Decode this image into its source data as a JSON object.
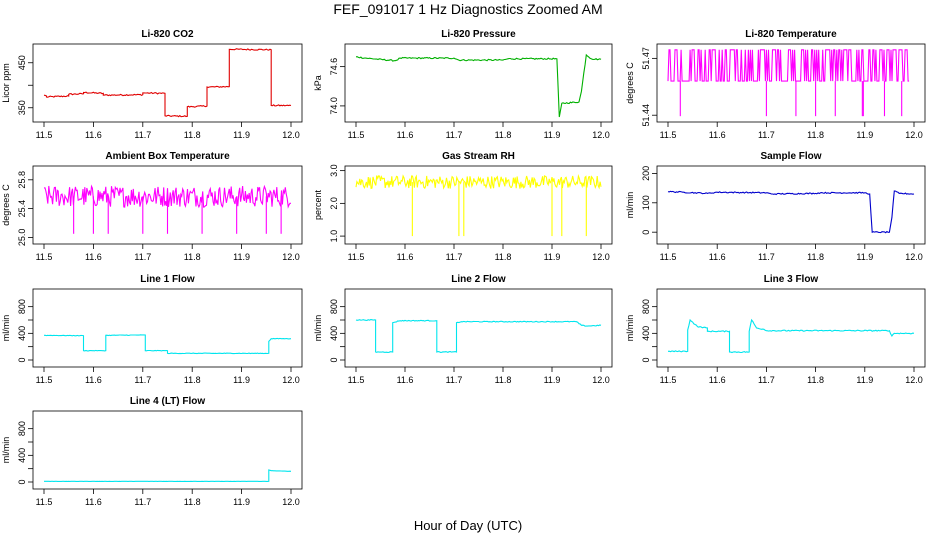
{
  "figure": {
    "title": "FEF_091017  1 Hz Diagnostics Zoomed AM",
    "xlabel": "Hour of Day (UTC)"
  },
  "chart_data": [
    {
      "type": "line",
      "title": "Li-820 CO2",
      "ylabel": "Licor ppm",
      "color": "#e00000",
      "xlim": [
        11.5,
        12.0
      ],
      "xticks": [
        11.5,
        11.6,
        11.7,
        11.8,
        11.9,
        12.0
      ],
      "xtick_labels": [
        "11.5",
        "11.6",
        "11.7",
        "11.8",
        "11.9",
        "12.0"
      ],
      "ylim": [
        325,
        485
      ],
      "yticks": [
        350,
        400,
        450
      ],
      "ytick_labels": [
        "350",
        "",
        "450"
      ],
      "noise": 1.5,
      "spikes": [],
      "series": [
        {
          "x": [
            11.5,
            11.505,
            11.505,
            11.55,
            11.55,
            11.58,
            11.58,
            11.62,
            11.62,
            11.7,
            11.7,
            11.745,
            11.745,
            11.79,
            11.79,
            11.83,
            11.83,
            11.875,
            11.875,
            11.96,
            11.96,
            12.0
          ],
          "y": [
            378,
            376,
            374,
            376,
            380,
            381,
            384,
            382,
            378,
            379,
            383,
            382,
            332,
            331,
            352,
            354,
            396,
            397,
            480,
            479,
            355,
            355
          ]
        }
      ]
    },
    {
      "type": "line",
      "title": "Li-820 Pressure",
      "ylabel": "kPa",
      "color": "#00b000",
      "xlim": [
        11.5,
        12.0
      ],
      "xticks": [
        11.5,
        11.6,
        11.7,
        11.8,
        11.9,
        12.0
      ],
      "xtick_labels": [
        "11.5",
        "11.6",
        "11.7",
        "11.8",
        "11.9",
        "12.0"
      ],
      "ylim": [
        73.8,
        74.9
      ],
      "yticks": [
        74.0,
        74.6
      ],
      "ytick_labels": [
        "74.0",
        "74.6"
      ],
      "noise": 0.01,
      "spikes": [],
      "series": [
        {
          "x": [
            11.5,
            11.52,
            11.58,
            11.59,
            11.7,
            11.71,
            11.8,
            11.81,
            11.91,
            11.915,
            11.92,
            11.955,
            11.96,
            11.97,
            11.98,
            12.0
          ],
          "y": [
            74.75,
            74.73,
            74.69,
            74.73,
            74.73,
            74.7,
            74.7,
            74.72,
            74.72,
            73.83,
            74.04,
            74.06,
            74.22,
            74.78,
            74.72,
            74.71
          ]
        }
      ]
    },
    {
      "type": "line",
      "title": "Li-820 Temperature",
      "ylabel": "degrees C",
      "color": "#ff00ff",
      "xlim": [
        11.5,
        12.0
      ],
      "xticks": [
        11.5,
        11.6,
        11.7,
        11.8,
        11.9,
        12.0
      ],
      "xtick_labels": [
        "11.5",
        "11.6",
        "11.7",
        "11.8",
        "11.9",
        "12.0"
      ],
      "ylim": [
        51.438,
        51.476
      ],
      "yticks": [
        51.44,
        51.47
      ],
      "ytick_labels": [
        "51.44",
        "51.47"
      ],
      "pattern": "digital",
      "low": 51.458,
      "high": 51.4745,
      "spike_low": 51.4395,
      "spikes": [
        11.525,
        11.7,
        11.76,
        11.8,
        11.84,
        11.895,
        11.897,
        11.94,
        11.975
      ],
      "series": [
        {
          "x": [
            11.5,
            11.99
          ],
          "y": [
            51.458,
            51.458
          ]
        }
      ]
    },
    {
      "type": "line",
      "title": "Ambient Box Temperature",
      "ylabel": "degrees C",
      "color": "#ff00ff",
      "xlim": [
        11.5,
        12.0
      ],
      "xticks": [
        11.5,
        11.6,
        11.7,
        11.8,
        11.9,
        12.0
      ],
      "xtick_labels": [
        "11.5",
        "11.6",
        "11.7",
        "11.8",
        "11.9",
        "12.0"
      ],
      "ylim": [
        24.95,
        25.95
      ],
      "yticks": [
        25.0,
        25.4,
        25.8
      ],
      "ytick_labels": [
        "25.0",
        "25.4",
        "25.8"
      ],
      "pattern": "band",
      "low": 25.42,
      "high": 25.72,
      "band_mean": 25.57,
      "spike_low": 25.05,
      "spikes": [
        11.56,
        11.6,
        11.63,
        11.7,
        11.75,
        11.82,
        11.89,
        11.95,
        11.98
      ],
      "series": [
        {
          "x": [
            11.5,
            12.0
          ],
          "y": [
            25.57,
            25.57
          ]
        }
      ]
    },
    {
      "type": "line",
      "title": "Gas Stream RH",
      "ylabel": "percent",
      "color": "#ffff00",
      "xlim": [
        11.5,
        12.0
      ],
      "xticks": [
        11.5,
        11.6,
        11.7,
        11.8,
        11.9,
        12.0
      ],
      "xtick_labels": [
        "11.5",
        "11.6",
        "11.7",
        "11.8",
        "11.9",
        "12.0"
      ],
      "ylim": [
        0.85,
        3.05
      ],
      "yticks": [
        1.0,
        2.0,
        3.0
      ],
      "ytick_labels": [
        "1.0",
        "2.0",
        "3.0"
      ],
      "pattern": "band",
      "low": 2.45,
      "high": 2.85,
      "band_mean": 2.65,
      "spike_low": 1.0,
      "spikes": [
        11.615,
        11.71,
        11.72,
        11.9,
        11.92,
        11.97
      ],
      "series": [
        {
          "x": [
            11.5,
            12.0
          ],
          "y": [
            2.65,
            2.65
          ]
        }
      ]
    },
    {
      "type": "line",
      "title": "Sample Flow",
      "ylabel": "ml/min",
      "color": "#0000cc",
      "xlim": [
        11.5,
        12.0
      ],
      "xticks": [
        11.5,
        11.6,
        11.7,
        11.8,
        11.9,
        12.0
      ],
      "xtick_labels": [
        "11.5",
        "11.6",
        "11.7",
        "11.8",
        "11.9",
        "12.0"
      ],
      "ylim": [
        -30,
        215
      ],
      "yticks": [
        0,
        100,
        200
      ],
      "ytick_labels": [
        "0",
        "100",
        "200"
      ],
      "noise": 2,
      "spikes": [],
      "series": [
        {
          "x": [
            11.5,
            11.53,
            11.58,
            11.6,
            11.7,
            11.71,
            11.8,
            11.81,
            11.9,
            11.91,
            11.915,
            11.95,
            11.955,
            11.96,
            11.97,
            12.0
          ],
          "y": [
            138,
            136,
            132,
            136,
            134,
            130,
            132,
            134,
            134,
            130,
            0,
            0,
            50,
            140,
            132,
            130
          ]
        }
      ]
    },
    {
      "type": "line",
      "title": "Line 1 Flow",
      "ylabel": "ml/min",
      "color": "#00e5ee",
      "xlim": [
        11.5,
        12.0
      ],
      "xticks": [
        11.5,
        11.6,
        11.7,
        11.8,
        11.9,
        12.0
      ],
      "xtick_labels": [
        "11.5",
        "11.6",
        "11.7",
        "11.8",
        "11.9",
        "12.0"
      ],
      "ylim": [
        -60,
        1020
      ],
      "yticks": [
        0,
        200,
        400,
        600,
        800
      ],
      "ytick_labels": [
        "0",
        "",
        "400",
        "",
        "800"
      ],
      "noise": 4,
      "spikes": [],
      "series": [
        {
          "x": [
            11.5,
            11.58,
            11.58,
            11.625,
            11.625,
            11.705,
            11.705,
            11.75,
            11.75,
            11.955,
            11.955,
            11.96,
            12.0
          ],
          "y": [
            370,
            365,
            140,
            140,
            370,
            375,
            140,
            140,
            100,
            100,
            280,
            320,
            320
          ]
        }
      ]
    },
    {
      "type": "line",
      "title": "Line 2 Flow",
      "ylabel": "ml/min",
      "color": "#00e5ee",
      "xlim": [
        11.5,
        12.0
      ],
      "xticks": [
        11.5,
        11.6,
        11.7,
        11.8,
        11.9,
        12.0
      ],
      "xtick_labels": [
        "11.5",
        "11.6",
        "11.7",
        "11.8",
        "11.9",
        "12.0"
      ],
      "ylim": [
        -60,
        1020
      ],
      "yticks": [
        0,
        200,
        400,
        600,
        800
      ],
      "ytick_labels": [
        "0",
        "",
        "400",
        "",
        "800"
      ],
      "noise": 6,
      "spikes": [],
      "series": [
        {
          "x": [
            11.5,
            11.54,
            11.54,
            11.575,
            11.575,
            11.59,
            11.665,
            11.665,
            11.705,
            11.705,
            11.715,
            11.95,
            11.96,
            11.97,
            12.0
          ],
          "y": [
            600,
            600,
            120,
            120,
            560,
            590,
            590,
            120,
            120,
            560,
            575,
            575,
            520,
            510,
            520
          ]
        }
      ]
    },
    {
      "type": "line",
      "title": "Line 3 Flow",
      "ylabel": "ml/min",
      "color": "#00e5ee",
      "xlim": [
        11.5,
        12.0
      ],
      "xticks": [
        11.5,
        11.6,
        11.7,
        11.8,
        11.9,
        12.0
      ],
      "xtick_labels": [
        "11.5",
        "11.6",
        "11.7",
        "11.8",
        "11.9",
        "12.0"
      ],
      "ylim": [
        -60,
        1020
      ],
      "yticks": [
        0,
        200,
        400,
        600,
        800
      ],
      "ytick_labels": [
        "0",
        "",
        "400",
        "",
        "800"
      ],
      "noise": 8,
      "spikes": [],
      "series": [
        {
          "x": [
            11.5,
            11.54,
            11.54,
            11.545,
            11.56,
            11.58,
            11.58,
            11.625,
            11.625,
            11.665,
            11.665,
            11.67,
            11.68,
            11.695,
            11.7,
            11.95,
            11.955,
            11.96,
            12.0
          ],
          "y": [
            130,
            130,
            450,
            600,
            500,
            480,
            430,
            430,
            120,
            120,
            430,
            600,
            480,
            460,
            440,
            440,
            360,
            400,
            400
          ]
        }
      ]
    },
    {
      "type": "line",
      "title": "Line 4 (LT) Flow",
      "ylabel": "ml/min",
      "color": "#00e5ee",
      "xlim": [
        11.5,
        12.0
      ],
      "xticks": [
        11.5,
        11.6,
        11.7,
        11.8,
        11.9,
        12.0
      ],
      "xtick_labels": [
        "11.5",
        "11.6",
        "11.7",
        "11.8",
        "11.9",
        "12.0"
      ],
      "ylim": [
        -60,
        1020
      ],
      "yticks": [
        0,
        200,
        400,
        600,
        800
      ],
      "ytick_labels": [
        "0",
        "",
        "400",
        "",
        "800"
      ],
      "noise": 1,
      "spikes": [],
      "series": [
        {
          "x": [
            11.5,
            11.955,
            11.955,
            11.96,
            12.0
          ],
          "y": [
            10,
            10,
            180,
            170,
            160
          ]
        }
      ]
    }
  ]
}
